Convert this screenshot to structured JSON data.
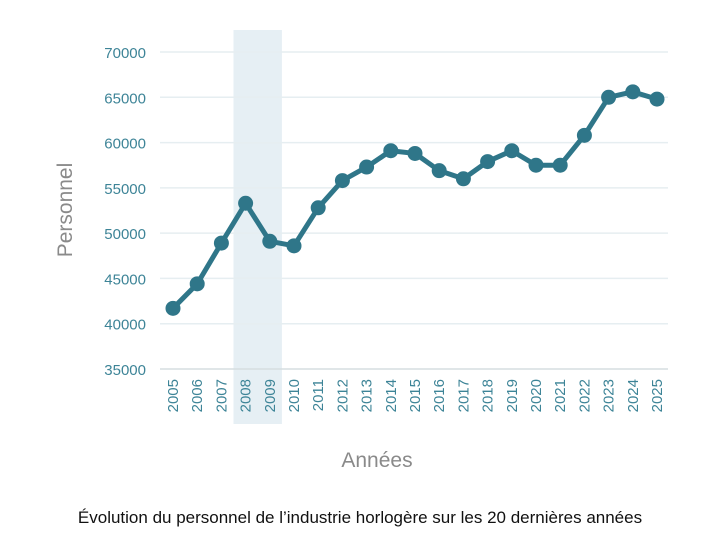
{
  "chart_data": {
    "type": "line",
    "title": "",
    "caption": "Évolution du personnel de l’industrie horlogère sur les 20 dernières années",
    "xlabel": "Années",
    "ylabel": "Personnel",
    "categories": [
      "2005",
      "2006",
      "2007",
      "2008",
      "2009",
      "2010",
      "2011",
      "2012",
      "2013",
      "2014",
      "2015",
      "2016",
      "2017",
      "2018",
      "2019",
      "2020",
      "2021",
      "2022",
      "2023",
      "2024",
      "2025"
    ],
    "values": [
      41700,
      44400,
      48900,
      53300,
      49100,
      48600,
      52800,
      55800,
      57300,
      59100,
      58800,
      56900,
      56000,
      57900,
      59100,
      57500,
      57500,
      60800,
      65000,
      65600,
      64800
    ],
    "ylim": [
      35000,
      70000
    ],
    "yticks": [
      35000,
      40000,
      45000,
      50000,
      55000,
      60000,
      65000,
      70000
    ],
    "grid": true,
    "highlight_range": [
      "2008",
      "2009"
    ],
    "colors": {
      "line": "#2f7689",
      "tick": "#3d8497",
      "axis_label": "#8a8a8a",
      "grid": "#e6eef1",
      "highlight": "#e6eff4"
    }
  }
}
